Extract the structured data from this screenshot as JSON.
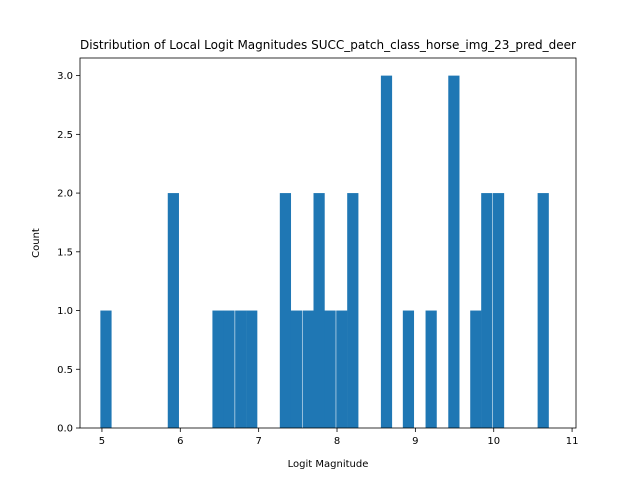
{
  "chart_data": {
    "type": "bar",
    "title": "Distribution of Local Logit Magnitudes SUCC_patch_class_horse_img_23_pred_deer",
    "xlabel": "Logit Magnitude",
    "ylabel": "Count",
    "xlim": [
      4.72,
      11.05
    ],
    "ylim": [
      0,
      3.15
    ],
    "bin_width": 0.143,
    "grid": false,
    "legend": "none",
    "bar_color": "#1f77b4",
    "x_ticks": [
      5,
      6,
      7,
      8,
      9,
      10,
      11
    ],
    "y_ticks": [
      0.0,
      0.5,
      1.0,
      1.5,
      2.0,
      2.5,
      3.0
    ],
    "x_tick_labels": [
      "5",
      "6",
      "7",
      "8",
      "9",
      "10",
      "11"
    ],
    "y_tick_labels": [
      "0.0",
      "0.5",
      "1.0",
      "1.5",
      "2.0",
      "2.5",
      "3.0"
    ],
    "bins": [
      {
        "x": 4.98,
        "count": 1
      },
      {
        "x": 5.84,
        "count": 2
      },
      {
        "x": 6.41,
        "count": 1
      },
      {
        "x": 6.55,
        "count": 1
      },
      {
        "x": 6.7,
        "count": 1
      },
      {
        "x": 6.84,
        "count": 1
      },
      {
        "x": 7.27,
        "count": 2
      },
      {
        "x": 7.41,
        "count": 1
      },
      {
        "x": 7.56,
        "count": 1
      },
      {
        "x": 7.7,
        "count": 2
      },
      {
        "x": 7.84,
        "count": 1
      },
      {
        "x": 7.99,
        "count": 1
      },
      {
        "x": 8.13,
        "count": 2
      },
      {
        "x": 8.56,
        "count": 3
      },
      {
        "x": 8.84,
        "count": 1
      },
      {
        "x": 9.13,
        "count": 1
      },
      {
        "x": 9.42,
        "count": 3
      },
      {
        "x": 9.7,
        "count": 1
      },
      {
        "x": 9.84,
        "count": 2
      },
      {
        "x": 9.99,
        "count": 2
      },
      {
        "x": 10.56,
        "count": 2
      }
    ]
  }
}
